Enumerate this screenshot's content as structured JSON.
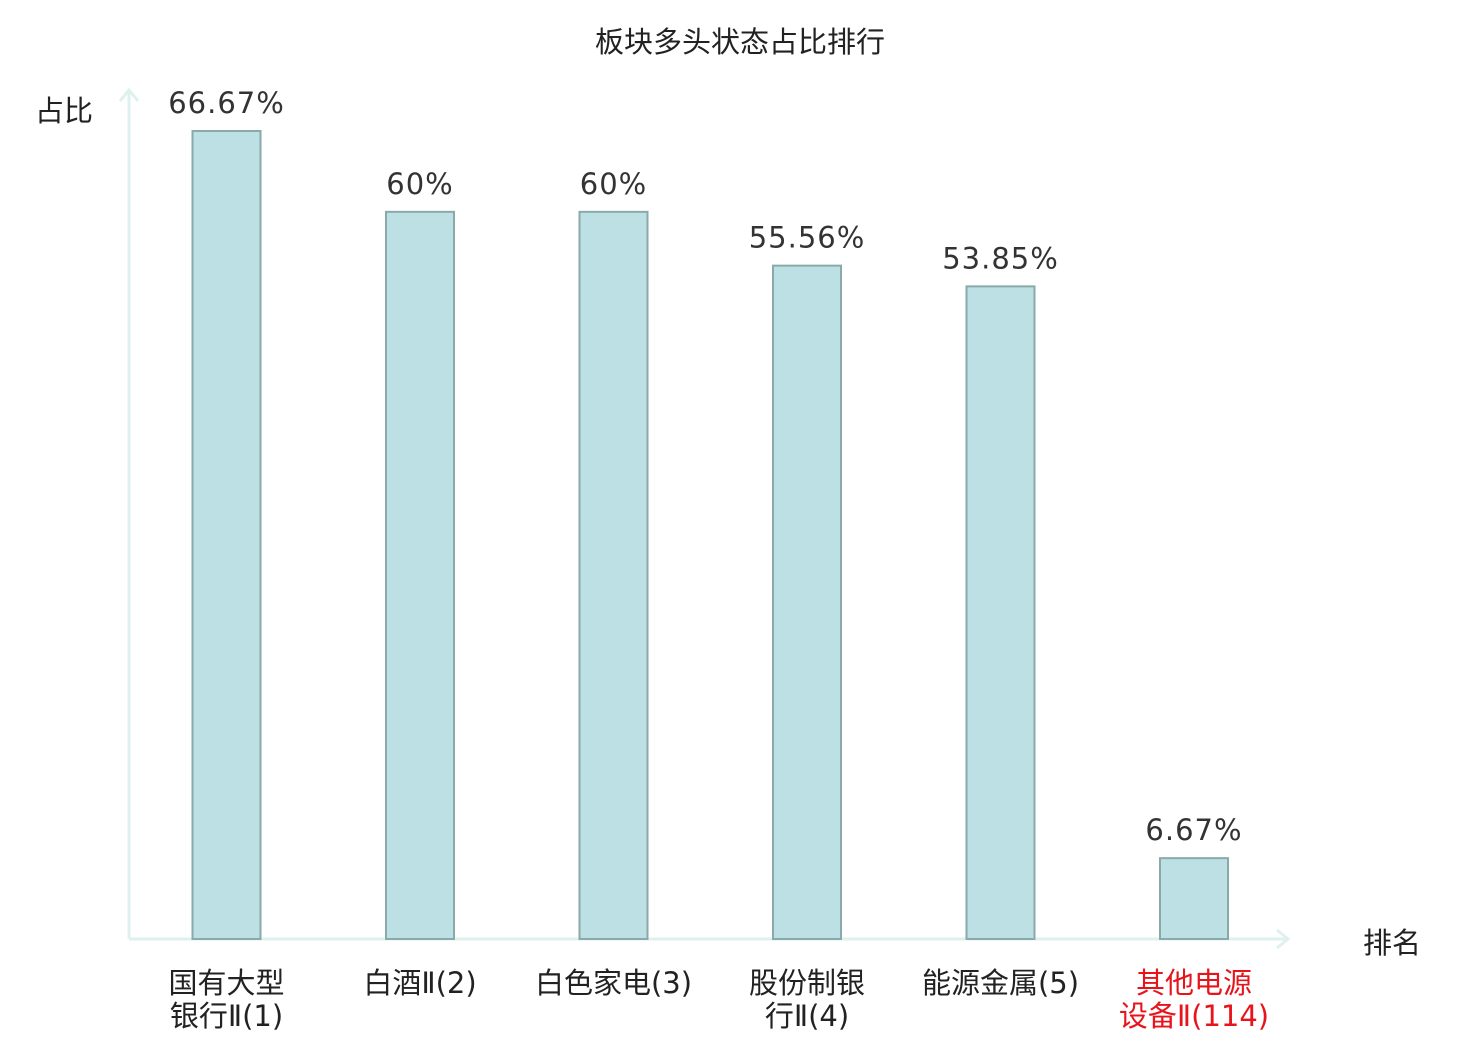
{
  "chart_data": {
    "type": "bar",
    "title": "板块多头状态占比排行",
    "ylabel": "占比",
    "xlabel": "排名",
    "categories": [
      [
        "国有大型",
        "银行Ⅱ(1)"
      ],
      [
        "白酒Ⅱ(2)"
      ],
      [
        "白色家电(3)"
      ],
      [
        "股份制银",
        "行Ⅱ(4)"
      ],
      [
        "能源金属(5)"
      ],
      [
        "其他电源",
        "设备Ⅱ(114)"
      ]
    ],
    "values": [
      66.67,
      60,
      60,
      55.56,
      53.85,
      6.67
    ],
    "value_labels": [
      "66.67%",
      "60%",
      "60%",
      "55.56%",
      "53.85%",
      "6.67%"
    ],
    "highlight_index": 5,
    "ylim": [
      0,
      70
    ],
    "grid": false,
    "legend": "none"
  },
  "colors": {
    "bar_fill": "#bce0e3",
    "bar_stroke": "#8aa9ab",
    "axis": "#dff1ee",
    "text": "#222222",
    "value_text": "#333333",
    "highlight": "#e8141b"
  }
}
